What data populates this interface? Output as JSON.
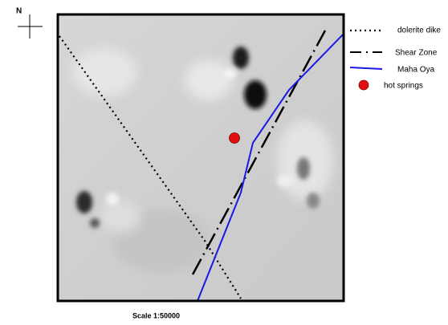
{
  "north_label": "N",
  "legend": {
    "items": [
      {
        "label": "dolerite dike"
      },
      {
        "label": "Shear Zone"
      },
      {
        "label": "Maha Oya"
      },
      {
        "label": "hot springs"
      }
    ]
  },
  "scale": "Scale 1:50000"
}
